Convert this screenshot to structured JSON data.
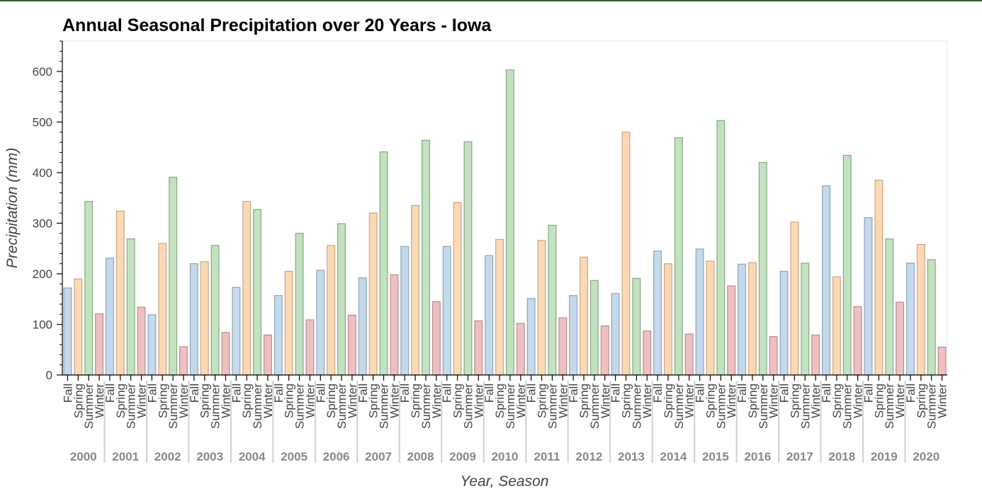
{
  "chart_data": {
    "type": "bar",
    "title": "Annual Seasonal Precipitation over 20 Years - Iowa",
    "xlabel": "Year, Season",
    "ylabel": "Precipitation (mm)",
    "ylim": [
      0,
      660
    ],
    "yticks": [
      0,
      100,
      200,
      300,
      400,
      500,
      600
    ],
    "grid": false,
    "years": [
      "2000",
      "2001",
      "2002",
      "2003",
      "2004",
      "2005",
      "2006",
      "2007",
      "2008",
      "2009",
      "2010",
      "2011",
      "2012",
      "2013",
      "2014",
      "2015",
      "2016",
      "2017",
      "2018",
      "2019",
      "2020"
    ],
    "seasons": [
      "Fall",
      "Spring",
      "Summer",
      "Winter"
    ],
    "colors": {
      "Fall": {
        "fill": "#c6d9ea",
        "stroke": "#8aa5bd"
      },
      "Spring": {
        "fill": "#fbd9b5",
        "stroke": "#c9a585"
      },
      "Summer": {
        "fill": "#c3e2c0",
        "stroke": "#86a884"
      },
      "Winter": {
        "fill": "#eec0c2",
        "stroke": "#b88b8d"
      }
    },
    "series": [
      {
        "name": "Fall",
        "values": [
          172,
          231,
          119,
          220,
          173,
          157,
          207,
          192,
          254,
          254,
          236,
          151,
          157,
          161,
          245,
          249,
          219,
          205,
          374,
          311,
          221
        ]
      },
      {
        "name": "Spring",
        "values": [
          190,
          324,
          260,
          224,
          343,
          205,
          256,
          320,
          335,
          341,
          268,
          266,
          233,
          480,
          220,
          225,
          222,
          302,
          194,
          385,
          258
        ]
      },
      {
        "name": "Summer",
        "values": [
          343,
          269,
          391,
          256,
          327,
          280,
          299,
          441,
          464,
          461,
          603,
          296,
          187,
          191,
          469,
          503,
          420,
          221,
          434,
          269,
          228
        ]
      },
      {
        "name": "Winter",
        "values": [
          121,
          134,
          56,
          84,
          79,
          109,
          118,
          198,
          145,
          107,
          102,
          113,
          97,
          87,
          81,
          176,
          76,
          79,
          135,
          144,
          55
        ]
      }
    ]
  }
}
